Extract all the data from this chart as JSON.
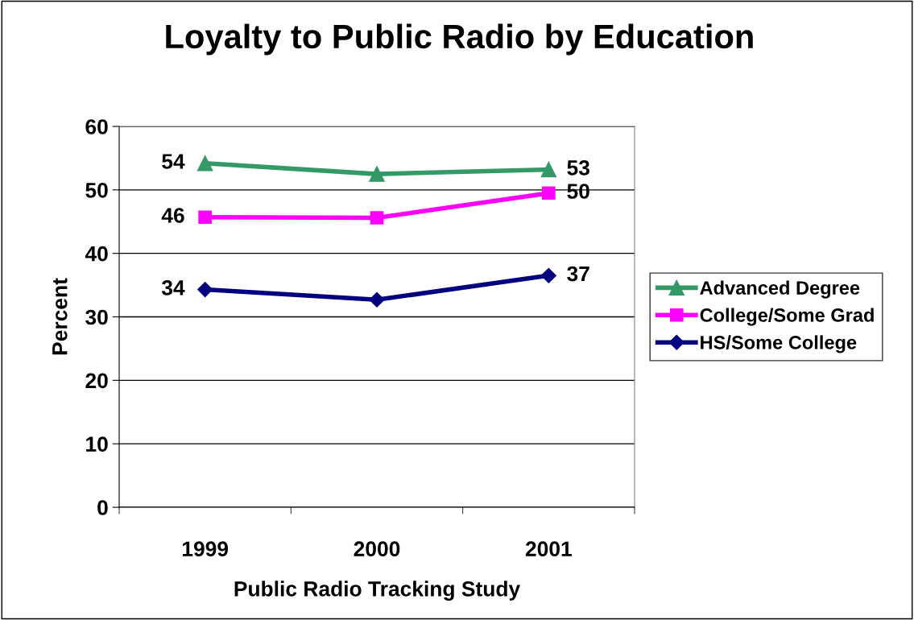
{
  "chart_data": {
    "type": "line",
    "title": "Loyalty to Public Radio by Education",
    "xlabel": "Public Radio Tracking Study",
    "ylabel": "Percent",
    "categories": [
      "1999",
      "2000",
      "2001"
    ],
    "series": [
      {
        "name": "Advanced Degree",
        "color": "#339966",
        "marker": "triangle",
        "values": [
          54.2,
          52.5,
          53.2
        ],
        "value_labels": [
          "54",
          null,
          "53"
        ]
      },
      {
        "name": "College/Some Grad",
        "color": "#ff00ff",
        "marker": "square",
        "values": [
          45.7,
          45.6,
          49.5
        ],
        "value_labels": [
          "46",
          null,
          "50"
        ]
      },
      {
        "name": "HS/Some College",
        "color": "#000080",
        "marker": "diamond",
        "values": [
          34.3,
          32.7,
          36.5
        ],
        "value_labels": [
          "34",
          null,
          "37"
        ]
      }
    ],
    "ylim": [
      0,
      60
    ],
    "yticks": [
      0,
      10,
      20,
      30,
      40,
      50,
      60
    ],
    "grid": "y",
    "legend": "right",
    "line_style": "solid"
  }
}
